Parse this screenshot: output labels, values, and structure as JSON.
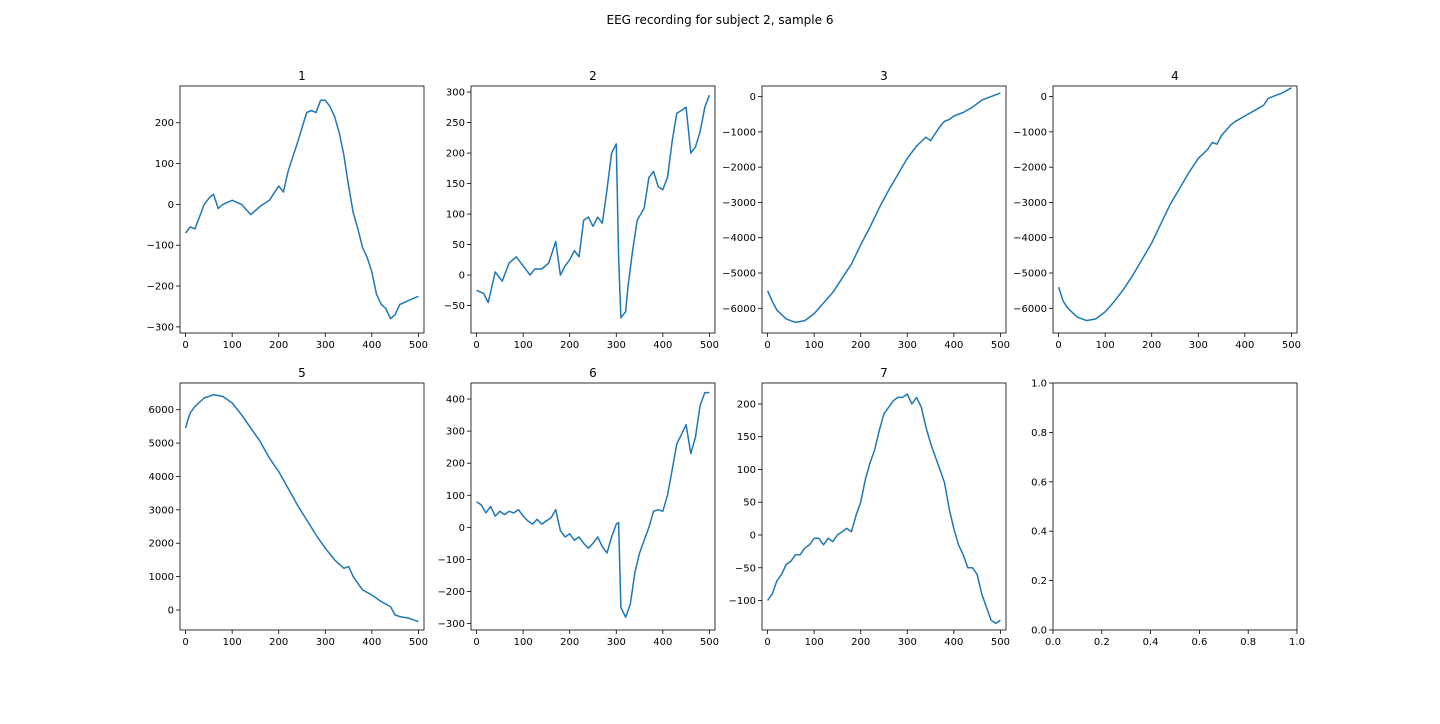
{
  "figure": {
    "suptitle": "EEG recording for subject 2, sample 6"
  },
  "style": {
    "line_color": "#1f77b4",
    "axes_color": "#000000",
    "background": "#ffffff"
  },
  "chart_data": [
    {
      "type": "line",
      "title": "1",
      "xlabel": "",
      "ylabel": "",
      "xlim": [
        -12,
        512
      ],
      "ylim": [
        -315,
        290
      ],
      "xticks": [
        0,
        100,
        200,
        300,
        400,
        500
      ],
      "yticks": [
        -300,
        -200,
        -100,
        0,
        100,
        200
      ],
      "grid": false,
      "x": [
        0,
        10,
        20,
        30,
        40,
        50,
        60,
        70,
        80,
        100,
        120,
        140,
        160,
        180,
        200,
        210,
        220,
        240,
        260,
        270,
        280,
        290,
        300,
        310,
        320,
        330,
        340,
        350,
        360,
        370,
        380,
        390,
        400,
        410,
        420,
        430,
        440,
        450,
        460,
        480,
        500
      ],
      "y": [
        -70,
        -55,
        -60,
        -30,
        0,
        15,
        25,
        -10,
        0,
        10,
        0,
        -25,
        -5,
        10,
        45,
        30,
        80,
        150,
        225,
        230,
        225,
        255,
        255,
        240,
        215,
        175,
        120,
        45,
        -20,
        -60,
        -105,
        -130,
        -165,
        -220,
        -245,
        -255,
        -280,
        -270,
        -245,
        -235,
        -225
      ]
    },
    {
      "type": "line",
      "title": "2",
      "xlabel": "",
      "ylabel": "",
      "xlim": [
        -12,
        512
      ],
      "ylim": [
        -95,
        310
      ],
      "xticks": [
        0,
        100,
        200,
        300,
        400,
        500
      ],
      "yticks": [
        -50,
        0,
        50,
        100,
        150,
        200,
        250,
        300
      ],
      "grid": false,
      "x": [
        0,
        15,
        25,
        40,
        55,
        70,
        85,
        100,
        115,
        125,
        140,
        155,
        170,
        180,
        190,
        200,
        210,
        220,
        230,
        240,
        250,
        260,
        270,
        280,
        290,
        300,
        305,
        310,
        320,
        325,
        335,
        345,
        360,
        370,
        380,
        390,
        400,
        410,
        420,
        430,
        440,
        450,
        460,
        470,
        480,
        490,
        500
      ],
      "y": [
        -25,
        -30,
        -45,
        5,
        -10,
        20,
        30,
        15,
        0,
        10,
        10,
        20,
        55,
        0,
        15,
        25,
        40,
        30,
        90,
        95,
        80,
        95,
        85,
        140,
        200,
        215,
        30,
        -70,
        -60,
        -20,
        40,
        90,
        110,
        160,
        170,
        145,
        140,
        160,
        220,
        265,
        270,
        275,
        200,
        210,
        235,
        275,
        295
      ]
    },
    {
      "type": "line",
      "title": "3",
      "xlabel": "",
      "ylabel": "",
      "xlim": [
        -12,
        512
      ],
      "ylim": [
        -6700,
        300
      ],
      "xticks": [
        0,
        100,
        200,
        300,
        400,
        500
      ],
      "yticks": [
        -6000,
        -5000,
        -4000,
        -3000,
        -2000,
        -1000,
        0
      ],
      "grid": false,
      "x": [
        0,
        10,
        20,
        40,
        60,
        80,
        100,
        120,
        140,
        160,
        180,
        200,
        220,
        240,
        260,
        280,
        300,
        320,
        340,
        350,
        360,
        370,
        380,
        390,
        400,
        420,
        440,
        460,
        480,
        500
      ],
      "y": [
        -5500,
        -5800,
        -6050,
        -6300,
        -6400,
        -6350,
        -6150,
        -5850,
        -5550,
        -5150,
        -4750,
        -4200,
        -3700,
        -3150,
        -2650,
        -2200,
        -1750,
        -1400,
        -1150,
        -1250,
        -1050,
        -850,
        -700,
        -650,
        -550,
        -450,
        -300,
        -100,
        0,
        100
      ]
    },
    {
      "type": "line",
      "title": "4",
      "xlabel": "",
      "ylabel": "",
      "xlim": [
        -12,
        512
      ],
      "ylim": [
        -6700,
        300
      ],
      "xticks": [
        0,
        100,
        200,
        300,
        400,
        500
      ],
      "yticks": [
        -6000,
        -5000,
        -4000,
        -3000,
        -2000,
        -1000,
        0
      ],
      "grid": false,
      "x": [
        0,
        10,
        20,
        40,
        60,
        80,
        100,
        120,
        140,
        160,
        180,
        200,
        220,
        240,
        260,
        280,
        300,
        320,
        330,
        340,
        350,
        360,
        370,
        380,
        400,
        420,
        440,
        450,
        460,
        480,
        500
      ],
      "y": [
        -5400,
        -5800,
        -6000,
        -6250,
        -6350,
        -6300,
        -6100,
        -5800,
        -5450,
        -5050,
        -4600,
        -4150,
        -3600,
        -3050,
        -2600,
        -2150,
        -1750,
        -1500,
        -1300,
        -1350,
        -1100,
        -950,
        -800,
        -700,
        -550,
        -400,
        -250,
        -50,
        0,
        100,
        250
      ]
    },
    {
      "type": "line",
      "title": "5",
      "xlabel": "",
      "ylabel": "",
      "xlim": [
        -12,
        512
      ],
      "ylim": [
        -600,
        6800
      ],
      "xticks": [
        0,
        100,
        200,
        300,
        400,
        500
      ],
      "yticks": [
        0,
        1000,
        2000,
        3000,
        4000,
        5000,
        6000
      ],
      "grid": false,
      "x": [
        0,
        5,
        10,
        20,
        40,
        60,
        80,
        100,
        120,
        140,
        160,
        180,
        200,
        220,
        240,
        260,
        280,
        300,
        320,
        340,
        350,
        360,
        370,
        380,
        400,
        420,
        440,
        450,
        460,
        480,
        500
      ],
      "y": [
        5450,
        5700,
        5900,
        6100,
        6350,
        6450,
        6400,
        6200,
        5850,
        5450,
        5050,
        4550,
        4150,
        3650,
        3150,
        2700,
        2250,
        1850,
        1500,
        1250,
        1300,
        1000,
        800,
        600,
        450,
        250,
        100,
        -150,
        -200,
        -250,
        -350
      ]
    },
    {
      "type": "line",
      "title": "6",
      "xlabel": "",
      "ylabel": "",
      "xlim": [
        -12,
        512
      ],
      "ylim": [
        -320,
        450
      ],
      "xticks": [
        0,
        100,
        200,
        300,
        400,
        500
      ],
      "yticks": [
        -300,
        -200,
        -100,
        0,
        100,
        200,
        300,
        400
      ],
      "grid": false,
      "x": [
        0,
        10,
        20,
        30,
        40,
        50,
        60,
        70,
        80,
        90,
        100,
        110,
        120,
        130,
        140,
        150,
        160,
        170,
        180,
        190,
        200,
        210,
        220,
        230,
        240,
        250,
        260,
        270,
        280,
        290,
        300,
        305,
        310,
        320,
        330,
        340,
        350,
        360,
        370,
        380,
        390,
        400,
        410,
        420,
        430,
        440,
        450,
        460,
        470,
        480,
        490,
        500
      ],
      "y": [
        80,
        70,
        45,
        65,
        35,
        50,
        40,
        50,
        45,
        55,
        35,
        20,
        10,
        25,
        10,
        20,
        30,
        55,
        -10,
        -30,
        -20,
        -40,
        -30,
        -50,
        -65,
        -50,
        -30,
        -60,
        -80,
        -30,
        10,
        15,
        -250,
        -280,
        -240,
        -140,
        -80,
        -40,
        0,
        50,
        55,
        50,
        100,
        180,
        260,
        290,
        320,
        230,
        280,
        380,
        420,
        420
      ]
    },
    {
      "type": "line",
      "title": "7",
      "xlabel": "",
      "ylabel": "",
      "xlim": [
        -12,
        512
      ],
      "ylim": [
        -145,
        232
      ],
      "xticks": [
        0,
        100,
        200,
        300,
        400,
        500
      ],
      "yticks": [
        -100,
        -50,
        0,
        50,
        100,
        150,
        200
      ],
      "grid": false,
      "x": [
        0,
        10,
        20,
        30,
        40,
        50,
        60,
        70,
        80,
        90,
        100,
        110,
        120,
        130,
        140,
        150,
        160,
        170,
        180,
        190,
        200,
        210,
        220,
        230,
        240,
        250,
        260,
        270,
        280,
        290,
        300,
        310,
        320,
        330,
        340,
        350,
        360,
        370,
        380,
        390,
        400,
        410,
        420,
        430,
        440,
        450,
        460,
        470,
        480,
        490,
        500
      ],
      "y": [
        -100,
        -90,
        -70,
        -60,
        -45,
        -40,
        -30,
        -30,
        -20,
        -15,
        -5,
        -5,
        -15,
        -5,
        -10,
        0,
        5,
        10,
        5,
        30,
        50,
        85,
        110,
        130,
        160,
        185,
        195,
        205,
        210,
        210,
        215,
        200,
        210,
        195,
        165,
        140,
        120,
        100,
        80,
        40,
        10,
        -15,
        -30,
        -50,
        -50,
        -60,
        -90,
        -110,
        -130,
        -135,
        -130
      ]
    },
    {
      "type": "line",
      "title": "",
      "xlabel": "",
      "ylabel": "",
      "xlim": [
        0,
        1
      ],
      "ylim": [
        0,
        1
      ],
      "xticks": [
        0.0,
        0.2,
        0.4,
        0.6,
        0.8,
        1.0
      ],
      "yticks": [
        0.0,
        0.2,
        0.4,
        0.6,
        0.8,
        1.0
      ],
      "tick_format_decimals": 1,
      "grid": false,
      "x": [],
      "y": []
    }
  ]
}
